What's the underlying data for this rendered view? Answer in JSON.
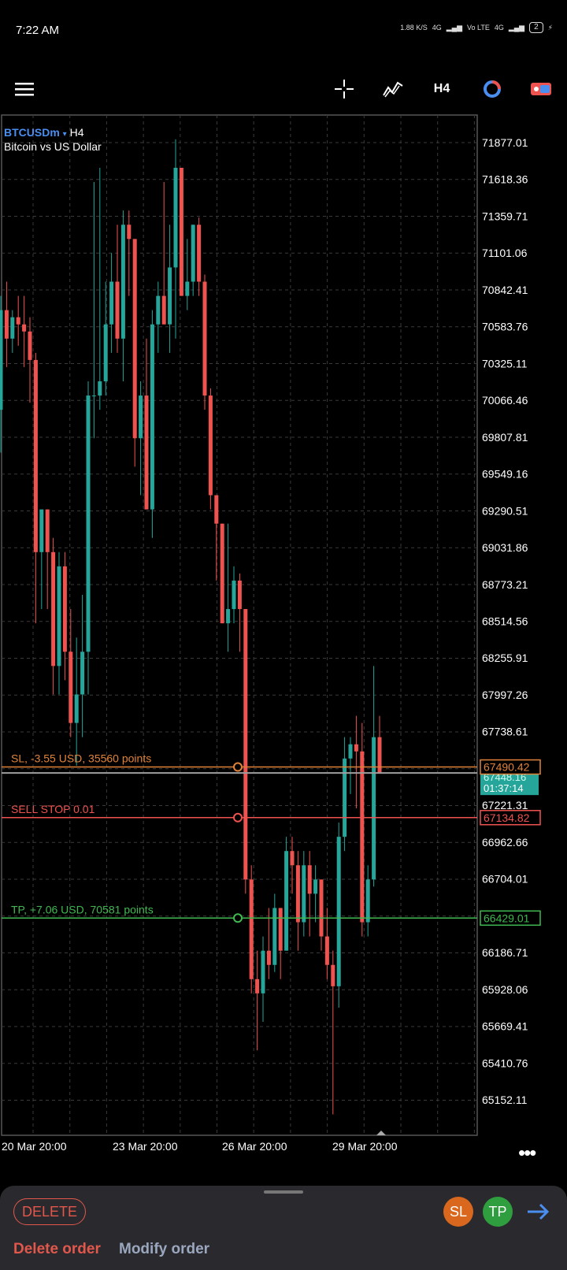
{
  "status": {
    "time": "7:22 AM",
    "net_speed": "1.88 K/S",
    "network": "4G",
    "volte": "Vo LTE",
    "network2": "4G",
    "battery": "2"
  },
  "toolbar": {
    "menu_icon": "menu-icon",
    "crosshair_icon": "crosshair-icon",
    "indicators_icon": "indicators-icon",
    "timeframe": "H4",
    "objects_icon": "objects-icon",
    "trade_icon": "trade-icon"
  },
  "symbol": {
    "name": "BTCUSDm",
    "marker": "▾",
    "timeframe": "H4",
    "description": "Bitcoin vs US Dollar"
  },
  "colors": {
    "bull": "#26a69a",
    "bear": "#ef5350",
    "sl": "#e0823a",
    "sell_stop": "#ef5350",
    "tp": "#3fb950",
    "grid": "#3a3a3a",
    "axis_text": "#ffffff",
    "bid_line": "#9e9e9e",
    "current_price_bg": "#26a69a"
  },
  "price_axis": [
    "71877.01",
    "71618.36",
    "71359.71",
    "71101.06",
    "70842.41",
    "70583.76",
    "70325.11",
    "70066.46",
    "69807.81",
    "69549.16",
    "69290.51",
    "69031.86",
    "68773.21",
    "68514.56",
    "68255.91",
    "67997.26",
    "67738.61",
    "67221.31",
    "66962.66",
    "66704.01",
    "66186.71",
    "65928.06",
    "65669.41",
    "65410.76",
    "65152.11"
  ],
  "time_axis": [
    "20 Mar 20:00",
    "23 Mar 20:00",
    "26 Mar 20:00",
    "29 Mar 20:00"
  ],
  "orders": {
    "sl": {
      "label": "SL, -3.55 USD, 35560 points",
      "price": "67490.42",
      "value": 67490.42
    },
    "sell_stop": {
      "label": "SELL STOP 0.01",
      "price": "67134.82",
      "value": 67134.82
    },
    "tp": {
      "label": "TP, +7.06 USD, 70581 points",
      "price": "66429.01",
      "value": 66429.01
    }
  },
  "current": {
    "price": "67448.16",
    "value": 67448.16,
    "countdown": "01:37:14"
  },
  "bottom": {
    "delete_btn": "DELETE",
    "sl": "SL",
    "tp": "TP",
    "delete_order": "Delete order",
    "modify_order": "Modify order"
  },
  "chart_data": {
    "type": "candlestick",
    "title": "",
    "y_range": [
      65000,
      72000
    ],
    "candles": [
      {
        "o": 70000,
        "h": 70800,
        "l": 69700,
        "c": 70700
      },
      {
        "o": 70700,
        "h": 70900,
        "l": 70300,
        "c": 70500
      },
      {
        "o": 70500,
        "h": 70700,
        "l": 70400,
        "c": 70650
      },
      {
        "o": 70650,
        "h": 70800,
        "l": 70450,
        "c": 70600
      },
      {
        "o": 70600,
        "h": 70800,
        "l": 70300,
        "c": 70550
      },
      {
        "o": 70550,
        "h": 70650,
        "l": 70050,
        "c": 70350
      },
      {
        "o": 70350,
        "h": 70400,
        "l": 68500,
        "c": 69000
      },
      {
        "o": 69000,
        "h": 69300,
        "l": 68600,
        "c": 69300
      },
      {
        "o": 69300,
        "h": 69300,
        "l": 68600,
        "c": 69000
      },
      {
        "o": 69000,
        "h": 69100,
        "l": 68000,
        "c": 68200
      },
      {
        "o": 68200,
        "h": 69000,
        "l": 68000,
        "c": 68900
      },
      {
        "o": 68900,
        "h": 69000,
        "l": 68100,
        "c": 68300
      },
      {
        "o": 68300,
        "h": 68600,
        "l": 67700,
        "c": 67800
      },
      {
        "o": 67800,
        "h": 68400,
        "l": 67500,
        "c": 68000
      },
      {
        "o": 68000,
        "h": 68700,
        "l": 67700,
        "c": 68300
      },
      {
        "o": 68300,
        "h": 70200,
        "l": 68000,
        "c": 70100
      },
      {
        "o": 70100,
        "h": 71600,
        "l": 69800,
        "c": 70100
      },
      {
        "o": 70100,
        "h": 71700,
        "l": 70000,
        "c": 70200
      },
      {
        "o": 70200,
        "h": 70900,
        "l": 70100,
        "c": 70600
      },
      {
        "o": 70600,
        "h": 71100,
        "l": 70400,
        "c": 70900
      },
      {
        "o": 70900,
        "h": 71300,
        "l": 70400,
        "c": 70500
      },
      {
        "o": 70500,
        "h": 71400,
        "l": 70200,
        "c": 71300
      },
      {
        "o": 71300,
        "h": 71400,
        "l": 70800,
        "c": 71200
      },
      {
        "o": 71200,
        "h": 71200,
        "l": 69600,
        "c": 69800
      },
      {
        "o": 69800,
        "h": 70200,
        "l": 69400,
        "c": 70100
      },
      {
        "o": 70100,
        "h": 70500,
        "l": 69300,
        "c": 69300
      },
      {
        "o": 69300,
        "h": 70700,
        "l": 69100,
        "c": 70600
      },
      {
        "o": 70600,
        "h": 70900,
        "l": 70400,
        "c": 70800
      },
      {
        "o": 70800,
        "h": 71600,
        "l": 70600,
        "c": 70600
      },
      {
        "o": 70600,
        "h": 71300,
        "l": 70400,
        "c": 71000
      },
      {
        "o": 71000,
        "h": 71900,
        "l": 70500,
        "c": 71700
      },
      {
        "o": 71700,
        "h": 71700,
        "l": 70800,
        "c": 70800
      },
      {
        "o": 70800,
        "h": 71200,
        "l": 70700,
        "c": 70900
      },
      {
        "o": 70900,
        "h": 71300,
        "l": 70800,
        "c": 71300
      },
      {
        "o": 71300,
        "h": 71350,
        "l": 70800,
        "c": 70900
      },
      {
        "o": 70900,
        "h": 70950,
        "l": 70000,
        "c": 70100
      },
      {
        "o": 70100,
        "h": 70150,
        "l": 69300,
        "c": 69400
      },
      {
        "o": 69400,
        "h": 69400,
        "l": 68800,
        "c": 69200
      },
      {
        "o": 69200,
        "h": 69200,
        "l": 68500,
        "c": 68500
      },
      {
        "o": 68500,
        "h": 69200,
        "l": 68300,
        "c": 68600
      },
      {
        "o": 68600,
        "h": 68900,
        "l": 68500,
        "c": 68800
      },
      {
        "o": 68800,
        "h": 68850,
        "l": 68300,
        "c": 68600
      },
      {
        "o": 68600,
        "h": 68600,
        "l": 66600,
        "c": 66700
      },
      {
        "o": 66700,
        "h": 66800,
        "l": 65900,
        "c": 66000
      },
      {
        "o": 66000,
        "h": 66200,
        "l": 65500,
        "c": 65900
      },
      {
        "o": 65900,
        "h": 66300,
        "l": 65700,
        "c": 66200
      },
      {
        "o": 66200,
        "h": 66500,
        "l": 66000,
        "c": 66100
      },
      {
        "o": 66100,
        "h": 66600,
        "l": 66050,
        "c": 66500
      },
      {
        "o": 66500,
        "h": 66500,
        "l": 66000,
        "c": 66200
      },
      {
        "o": 66200,
        "h": 67000,
        "l": 66200,
        "c": 66900
      },
      {
        "o": 66900,
        "h": 67000,
        "l": 66600,
        "c": 66800
      },
      {
        "o": 66800,
        "h": 66900,
        "l": 66200,
        "c": 66400
      },
      {
        "o": 66400,
        "h": 66900,
        "l": 66300,
        "c": 66800
      },
      {
        "o": 66800,
        "h": 66900,
        "l": 66300,
        "c": 66600
      },
      {
        "o": 66600,
        "h": 66800,
        "l": 66400,
        "c": 66700
      },
      {
        "o": 66700,
        "h": 66700,
        "l": 66200,
        "c": 66300
      },
      {
        "o": 66300,
        "h": 66500,
        "l": 66000,
        "c": 66100
      },
      {
        "o": 66100,
        "h": 66200,
        "l": 65050,
        "c": 65950
      },
      {
        "o": 65950,
        "h": 67100,
        "l": 65800,
        "c": 67000
      },
      {
        "o": 67000,
        "h": 67700,
        "l": 66900,
        "c": 67550
      },
      {
        "o": 67550,
        "h": 67700,
        "l": 67300,
        "c": 67650
      },
      {
        "o": 67650,
        "h": 67850,
        "l": 67200,
        "c": 67600
      },
      {
        "o": 67600,
        "h": 67800,
        "l": 66300,
        "c": 66400
      },
      {
        "o": 66400,
        "h": 66800,
        "l": 66300,
        "c": 66700
      },
      {
        "o": 66700,
        "h": 68200,
        "l": 66650,
        "c": 67700
      },
      {
        "o": 67700,
        "h": 67850,
        "l": 67450,
        "c": 67450
      }
    ]
  }
}
